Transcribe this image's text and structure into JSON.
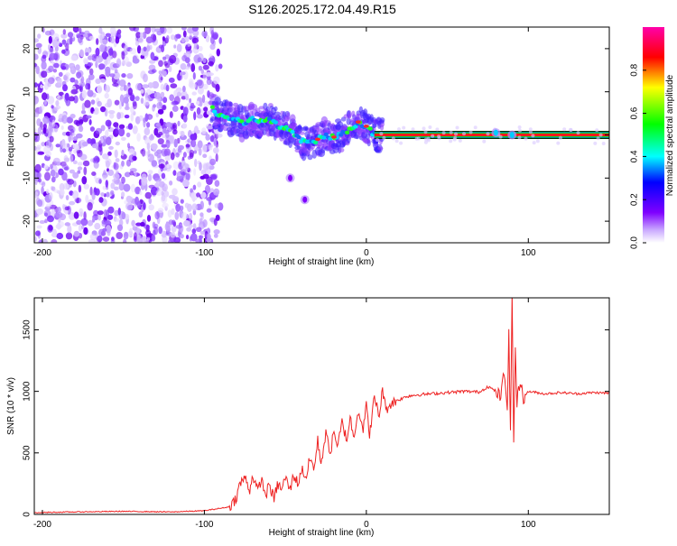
{
  "title": "S126.2025.172.04.49.R15",
  "chart_data": [
    {
      "type": "heatmap",
      "xlabel": "Height of straight line (km)",
      "ylabel": "Frequency (Hz)",
      "xlim": [
        -205,
        150
      ],
      "ylim": [
        -25,
        25
      ],
      "xticks": [
        "-200",
        "-100",
        "0",
        "100"
      ],
      "xtick_values": [
        -200,
        -100,
        0,
        100
      ],
      "yticks": [
        "20",
        "10",
        "0",
        "-10",
        "-20"
      ],
      "ytick_values": [
        20,
        10,
        0,
        -10,
        -20
      ],
      "colorbar": {
        "label": "Normalized spectral amplitude",
        "range": [
          0,
          1
        ],
        "ticks": [
          "0.0",
          "0.2",
          "0.4",
          "0.6",
          "0.8"
        ],
        "tick_values": [
          0.0,
          0.2,
          0.4,
          0.6,
          0.8
        ],
        "colormap": "rainbow (white-violet-blue-cyan-green-yellow-red-magenta)"
      },
      "noise_region_x": [
        -205,
        -90
      ],
      "ridge": {
        "x": [
          -95,
          -90,
          -85,
          -80,
          -75,
          -70,
          -65,
          -60,
          -55,
          -50,
          -45,
          -40,
          -35,
          -30,
          -25,
          -20,
          -15,
          -10,
          -5,
          0,
          5,
          10
        ],
        "y": [
          6,
          4.5,
          4,
          3.5,
          2,
          4,
          3,
          4,
          2,
          1.5,
          0.5,
          -1.5,
          -2,
          -1,
          0,
          -0.5,
          0,
          1.5,
          3,
          2,
          0,
          0
        ]
      },
      "tone_band": {
        "x_start": 5,
        "x_end": 150,
        "y": 0
      },
      "isolated_blobs": [
        {
          "x": -47,
          "y": -10
        },
        {
          "x": -38,
          "y": -15
        },
        {
          "x": 80,
          "y": 0.5
        },
        {
          "x": 90,
          "y": 0
        }
      ]
    },
    {
      "type": "line",
      "xlabel": "Height of straight line (km)",
      "ylabel": "SNR (10 * v/v)",
      "xlim": [
        -205,
        150
      ],
      "ylim": [
        0,
        1760
      ],
      "xticks": [
        "-200",
        "-100",
        "0",
        "100"
      ],
      "xtick_values": [
        -200,
        -100,
        0,
        100
      ],
      "yticks": [
        "0",
        "500",
        "1000",
        "1500"
      ],
      "ytick_values": [
        0,
        500,
        1000,
        1500
      ],
      "line_color": "#ee2222",
      "series": [
        {
          "x": [
            -205,
            -180,
            -150,
            -120,
            -100,
            -90,
            -85,
            -82,
            -80,
            -78,
            -75,
            -72,
            -70,
            -67,
            -65,
            -62,
            -60,
            -57,
            -55,
            -52,
            -50,
            -47,
            -45,
            -42,
            -40,
            -37,
            -35,
            -32,
            -30,
            -28,
            -25,
            -22,
            -20,
            -18,
            -15,
            -12,
            -10,
            -8,
            -5,
            -2,
            0,
            2,
            5,
            8,
            10,
            12,
            15,
            18,
            20,
            25,
            30,
            40,
            50,
            60,
            70,
            75,
            80,
            83,
            85,
            87,
            88,
            89,
            90,
            91,
            92,
            93,
            95,
            97,
            100,
            110,
            120,
            130,
            140,
            150
          ],
          "y": [
            15,
            20,
            25,
            20,
            30,
            50,
            60,
            100,
            150,
            250,
            300,
            200,
            320,
            180,
            290,
            150,
            250,
            120,
            240,
            210,
            300,
            200,
            320,
            250,
            370,
            300,
            450,
            380,
            600,
            420,
            650,
            500,
            700,
            520,
            750,
            600,
            800,
            620,
            850,
            700,
            880,
            650,
            950,
            800,
            1020,
            850,
            900,
            920,
            930,
            960,
            970,
            980,
            990,
            1000,
            995,
            1040,
            1000,
            950,
            1150,
            900,
            1450,
            700,
            1760,
            600,
            1350,
            900,
            1100,
            950,
            1000,
            980,
            990,
            980,
            990,
            985
          ]
        }
      ]
    }
  ]
}
